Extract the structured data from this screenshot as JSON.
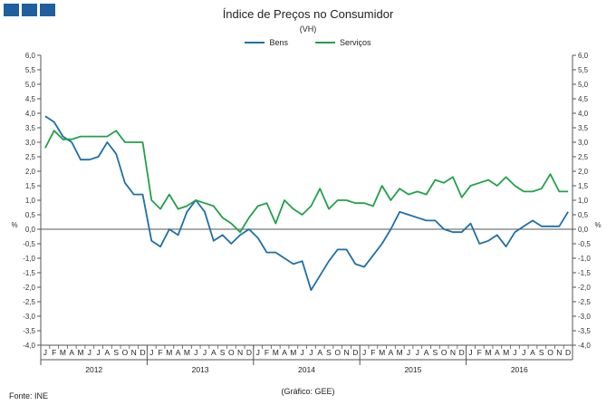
{
  "header": {
    "logo_icon": "ine-logo-blocks"
  },
  "footer": {
    "source": "Fonte: INE",
    "credit": "(Gráfico: GEE)"
  },
  "chart_data": {
    "type": "line",
    "title": "Índice de Preços no Consumidor",
    "subtitle": "(VH)",
    "ylabel_left": "%",
    "ylabel_right": "%",
    "ylim": [
      -4.0,
      6.0
    ],
    "ytick_step": 0.5,
    "grid": false,
    "legend_position": "top-center",
    "month_labels": [
      "J",
      "F",
      "M",
      "A",
      "M",
      "J",
      "J",
      "A",
      "S",
      "O",
      "N",
      "D"
    ],
    "years": [
      "2012",
      "2013",
      "2014",
      "2015",
      "2016"
    ],
    "series": [
      {
        "name": "Bens",
        "color": "#1f6fa8",
        "values": [
          3.9,
          3.7,
          3.2,
          3.0,
          2.4,
          2.4,
          2.5,
          3.0,
          2.6,
          1.6,
          1.2,
          1.2,
          -0.4,
          -0.6,
          0.0,
          -0.2,
          0.6,
          1.0,
          0.6,
          -0.4,
          -0.2,
          -0.5,
          -0.2,
          0.0,
          -0.3,
          -0.8,
          -0.8,
          -1.0,
          -1.2,
          -1.1,
          -2.1,
          -1.6,
          -1.1,
          -0.7,
          -0.7,
          -1.2,
          -1.3,
          -0.9,
          -0.5,
          0.0,
          0.6,
          0.5,
          0.4,
          0.3,
          0.3,
          0.0,
          -0.1,
          -0.1,
          0.2,
          -0.5,
          -0.4,
          -0.2,
          -0.6,
          -0.1,
          0.1,
          0.3,
          0.1,
          0.1,
          0.1,
          0.6
        ]
      },
      {
        "name": "Serviços",
        "color": "#22a04a",
        "values": [
          2.8,
          3.4,
          3.1,
          3.1,
          3.2,
          3.2,
          3.2,
          3.2,
          3.4,
          3.0,
          3.0,
          3.0,
          1.0,
          0.7,
          1.2,
          0.7,
          0.8,
          1.0,
          0.9,
          0.8,
          0.4,
          0.2,
          -0.1,
          0.4,
          0.8,
          0.9,
          0.2,
          1.0,
          0.7,
          0.5,
          0.8,
          1.4,
          0.7,
          1.0,
          1.0,
          0.9,
          0.9,
          0.8,
          1.5,
          1.0,
          1.4,
          1.2,
          1.3,
          1.2,
          1.7,
          1.6,
          1.8,
          1.1,
          1.5,
          1.6,
          1.7,
          1.5,
          1.8,
          1.5,
          1.3,
          1.3,
          1.4,
          1.9,
          1.3,
          1.3
        ]
      }
    ]
  }
}
